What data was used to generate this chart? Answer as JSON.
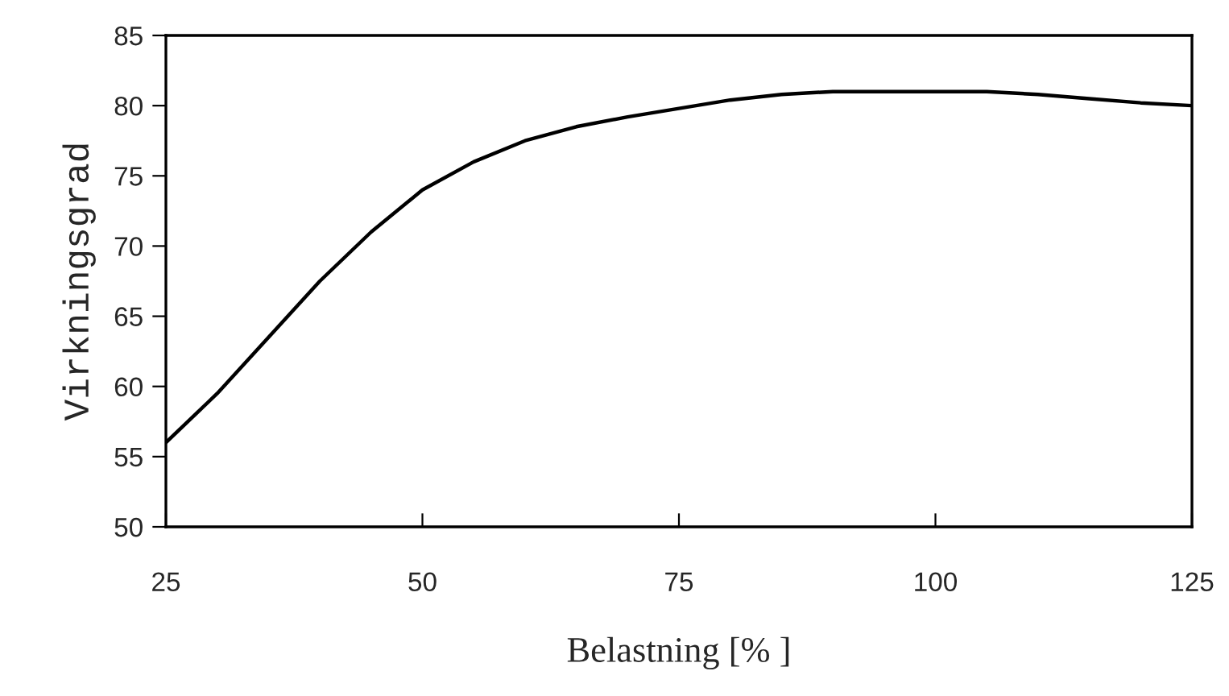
{
  "chart_data": {
    "type": "line",
    "xlabel": "Belastning [% ]",
    "ylabel": "Virkningsgrad",
    "series": [
      {
        "color": "#000000",
        "x": [
          25,
          30,
          35,
          40,
          45,
          50,
          55,
          60,
          65,
          70,
          75,
          80,
          85,
          90,
          95,
          100,
          105,
          110,
          115,
          120,
          125
        ],
        "values": [
          56,
          59.5,
          63.5,
          67.5,
          71,
          74,
          76,
          77.5,
          78.5,
          79.2,
          79.8,
          80.4,
          80.8,
          81,
          81,
          81,
          81,
          80.8,
          80.5,
          80.2,
          80
        ]
      }
    ],
    "xlim": [
      25,
      125
    ],
    "xticks": [
      25,
      50,
      75,
      100,
      125
    ],
    "ylim": [
      50,
      85
    ],
    "yticks": [
      50,
      55,
      60,
      65,
      70,
      75,
      80,
      85
    ],
    "grid": false,
    "marker": "none",
    "line_style": "solid"
  }
}
